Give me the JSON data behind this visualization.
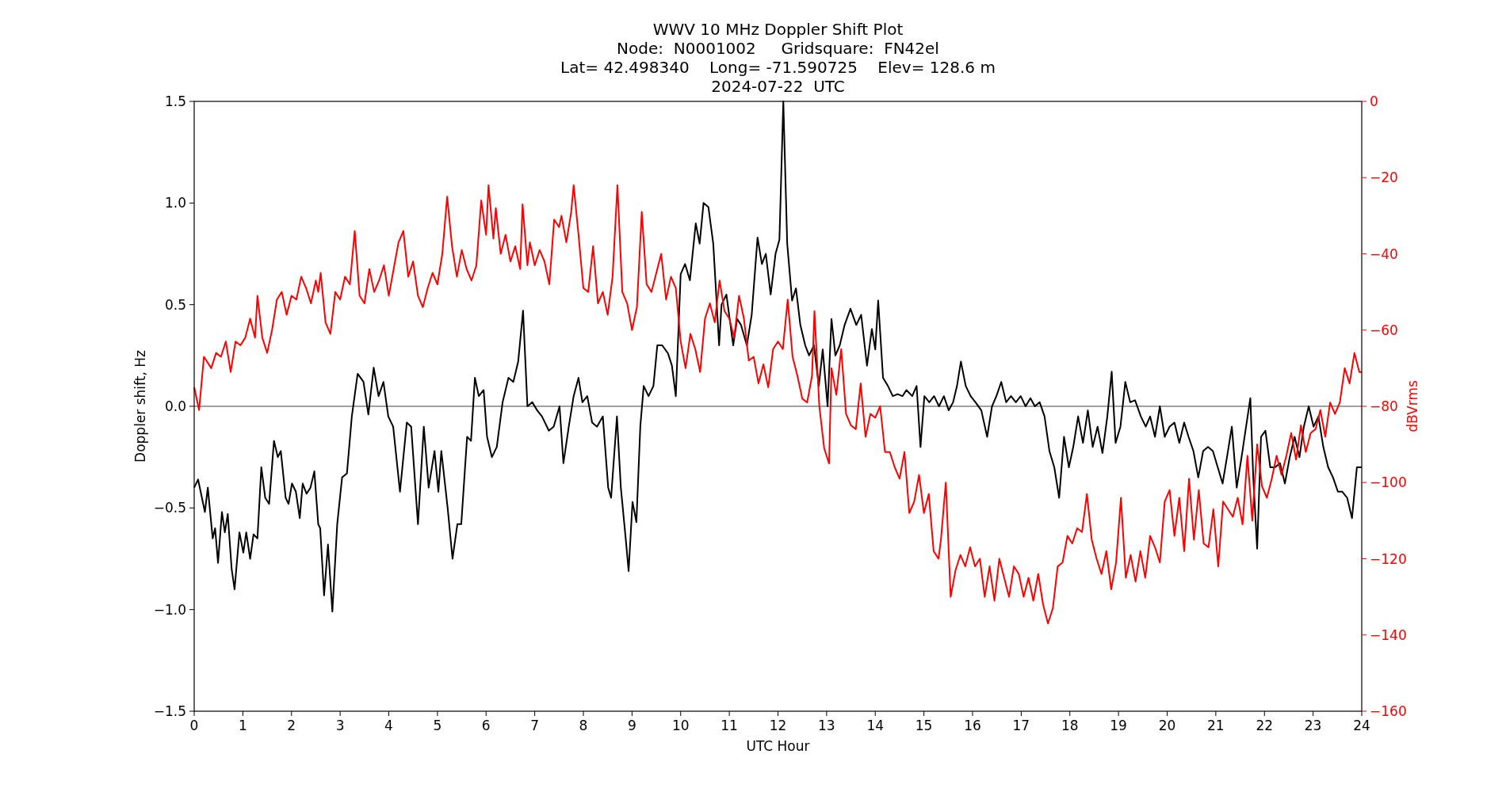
{
  "chart_data": {
    "type": "line",
    "title": "WWV 10 MHz Doppler Shift Plot\nNode:  N0001002     Gridsquare:  FN42el\nLat= 42.498340    Long= -71.590725    Elev= 128.6 m\n2024-07-22  UTC",
    "xlabel": "UTC Hour",
    "ylabel": "Doppler shift, Hz",
    "y2label": "dBVrms",
    "xlim": [
      0,
      24
    ],
    "xticks": [
      0,
      1,
      2,
      3,
      4,
      5,
      6,
      7,
      8,
      9,
      10,
      11,
      12,
      13,
      14,
      15,
      16,
      17,
      18,
      19,
      20,
      21,
      22,
      23,
      24
    ],
    "ylim": [
      -1.5,
      1.5
    ],
    "yticks": [
      {
        "value": -1.5,
        "label": "−1.5"
      },
      {
        "value": -1,
        "label": "−1.0"
      },
      {
        "value": -0.5,
        "label": "−0.5"
      },
      {
        "value": 0,
        "label": "0.0"
      },
      {
        "value": 0.5,
        "label": "0.5"
      },
      {
        "value": 1,
        "label": "1.0"
      },
      {
        "value": 1.5,
        "label": "1.5"
      }
    ],
    "y2lim": [
      -160,
      0
    ],
    "y2ticks": [
      {
        "value": -160,
        "label": "−160"
      },
      {
        "value": -140,
        "label": "−140"
      },
      {
        "value": -120,
        "label": "−120"
      },
      {
        "value": -100,
        "label": "−100"
      },
      {
        "value": -80,
        "label": "−80"
      },
      {
        "value": -60,
        "label": "−60"
      },
      {
        "value": -40,
        "label": "−40"
      },
      {
        "value": -20,
        "label": "−20"
      },
      {
        "value": 0,
        "label": "0"
      }
    ],
    "grid": false,
    "line_style": "solid",
    "marker": "none",
    "ref_lines": [
      {
        "axis": "y",
        "value": 0,
        "label": null,
        "color": "#808080"
      }
    ],
    "series": [
      {
        "color": "#000000",
        "x": [
          0,
          0.08,
          0.22,
          0.28,
          0.38,
          0.43,
          0.49,
          0.57,
          0.63,
          0.69,
          0.77,
          0.83,
          0.93,
          1.01,
          1.07,
          1.15,
          1.22,
          1.3,
          1.38,
          1.46,
          1.54,
          1.64,
          1.72,
          1.78,
          1.88,
          1.94,
          2.01,
          2.09,
          2.17,
          2.23,
          2.31,
          2.39,
          2.47,
          2.55,
          2.59,
          2.67,
          2.75,
          2.84,
          2.94,
          3.04,
          3.14,
          3.24,
          3.36,
          3.48,
          3.58,
          3.69,
          3.79,
          3.89,
          3.99,
          4.09,
          4.23,
          4.37,
          4.46,
          4.6,
          4.72,
          4.82,
          4.94,
          5.02,
          5.08,
          5.21,
          5.31,
          5.41,
          5.49,
          5.61,
          5.69,
          5.77,
          5.85,
          5.95,
          6.02,
          6.12,
          6.22,
          6.34,
          6.46,
          6.56,
          6.66,
          6.76,
          6.85,
          6.95,
          7.05,
          7.15,
          7.29,
          7.39,
          7.51,
          7.59,
          7.7,
          7.8,
          7.9,
          7.98,
          8.08,
          8.18,
          8.28,
          8.4,
          8.51,
          8.57,
          8.69,
          8.77,
          8.87,
          8.93,
          9.01,
          9.09,
          9.17,
          9.24,
          9.34,
          9.44,
          9.52,
          9.62,
          9.74,
          9.82,
          9.9,
          10,
          10.09,
          10.19,
          10.31,
          10.39,
          10.47,
          10.57,
          10.67,
          10.79,
          10.84,
          10.94,
          11.08,
          11.16,
          11.24,
          11.36,
          11.46,
          11.58,
          11.67,
          11.75,
          11.85,
          11.95,
          12.03,
          12.11,
          12.19,
          12.29,
          12.37,
          12.46,
          12.56,
          12.64,
          12.74,
          12.84,
          12.92,
          13.02,
          13.1,
          13.18,
          13.27,
          13.37,
          13.49,
          13.61,
          13.71,
          13.83,
          13.93,
          14,
          14.06,
          14.16,
          14.26,
          14.36,
          14.46,
          14.56,
          14.64,
          14.76,
          14.85,
          14.93,
          15.01,
          15.11,
          15.21,
          15.31,
          15.41,
          15.51,
          15.6,
          15.68,
          15.76,
          15.86,
          15.96,
          16.06,
          16.18,
          16.3,
          16.4,
          16.49,
          16.59,
          16.69,
          16.79,
          16.89,
          16.99,
          17.09,
          17.19,
          17.28,
          17.38,
          17.48,
          17.58,
          17.68,
          17.78,
          17.88,
          17.98,
          18.07,
          18.17,
          18.27,
          18.37,
          18.47,
          18.57,
          18.67,
          18.77,
          18.86,
          18.94,
          19.04,
          19.14,
          19.24,
          19.34,
          19.46,
          19.56,
          19.65,
          19.75,
          19.85,
          19.95,
          20.05,
          20.15,
          20.25,
          20.35,
          20.44,
          20.54,
          20.64,
          20.74,
          20.84,
          20.94,
          21.04,
          21.14,
          21.23,
          21.33,
          21.43,
          21.53,
          21.61,
          21.71,
          21.77,
          21.85,
          21.93,
          22.02,
          22.12,
          22.22,
          22.32,
          22.42,
          22.52,
          22.62,
          22.72,
          22.81,
          22.91,
          23.01,
          23.11,
          23.21,
          23.31,
          23.41,
          23.51,
          23.6,
          23.7,
          23.8,
          23.9,
          24
        ],
        "values": [
          -0.4,
          -0.36,
          -0.52,
          -0.4,
          -0.65,
          -0.6,
          -0.77,
          -0.52,
          -0.62,
          -0.53,
          -0.8,
          -0.9,
          -0.62,
          -0.72,
          -0.62,
          -0.75,
          -0.63,
          -0.65,
          -0.3,
          -0.45,
          -0.48,
          -0.17,
          -0.25,
          -0.22,
          -0.45,
          -0.48,
          -0.38,
          -0.42,
          -0.55,
          -0.38,
          -0.43,
          -0.4,
          -0.32,
          -0.58,
          -0.6,
          -0.93,
          -0.68,
          -1.01,
          -0.58,
          -0.35,
          -0.33,
          -0.05,
          0.16,
          0.12,
          -0.04,
          0.19,
          0.05,
          0.12,
          -0.05,
          -0.1,
          -0.42,
          -0.08,
          -0.1,
          -0.58,
          -0.1,
          -0.4,
          -0.22,
          -0.42,
          -0.22,
          -0.5,
          -0.75,
          -0.58,
          -0.58,
          -0.15,
          -0.17,
          0.14,
          0.05,
          0.08,
          -0.15,
          -0.25,
          -0.2,
          0.02,
          0.14,
          0.12,
          0.22,
          0.47,
          0,
          0.02,
          -0.02,
          -0.05,
          -0.12,
          -0.1,
          0,
          -0.28,
          -0.1,
          0.05,
          0.14,
          0.02,
          0.05,
          -0.08,
          -0.1,
          -0.05,
          -0.4,
          -0.45,
          -0.05,
          -0.4,
          -0.65,
          -0.81,
          -0.47,
          -0.57,
          -0.1,
          0.1,
          0.05,
          0.1,
          0.3,
          0.3,
          0.26,
          0.2,
          0.05,
          0.65,
          0.7,
          0.62,
          0.9,
          0.8,
          1,
          0.98,
          0.8,
          0.3,
          0.5,
          0.55,
          0.3,
          0.43,
          0.4,
          0.3,
          0.45,
          0.83,
          0.7,
          0.75,
          0.55,
          0.75,
          0.82,
          1.5,
          0.8,
          0.52,
          0.58,
          0.4,
          0.3,
          0.25,
          0.3,
          0.1,
          0.28,
          0,
          0.43,
          0.25,
          0.3,
          0.4,
          0.48,
          0.4,
          0.45,
          0.2,
          0.38,
          0.28,
          0.52,
          0.14,
          0.1,
          0.05,
          0.06,
          0.05,
          0.08,
          0.05,
          0.1,
          -0.2,
          0.05,
          0.02,
          0.05,
          0,
          0.05,
          -0.02,
          0.02,
          0.1,
          0.22,
          0.1,
          0.05,
          0.02,
          -0.02,
          -0.15,
          0,
          0.05,
          0.12,
          0.02,
          0.05,
          0.02,
          0.05,
          0,
          0.04,
          0,
          0.02,
          -0.05,
          -0.22,
          -0.3,
          -0.45,
          -0.15,
          -0.3,
          -0.2,
          -0.05,
          -0.18,
          -0.02,
          -0.2,
          -0.1,
          -0.23,
          -0.05,
          0.17,
          -0.18,
          -0.1,
          0.12,
          0.02,
          0.03,
          -0.05,
          -0.1,
          -0.05,
          -0.15,
          0,
          -0.15,
          -0.1,
          -0.08,
          -0.18,
          -0.08,
          -0.15,
          -0.22,
          -0.35,
          -0.22,
          -0.2,
          -0.22,
          -0.3,
          -0.38,
          -0.25,
          -0.1,
          -0.4,
          -0.25,
          -0.12,
          0.04,
          -0.35,
          -0.7,
          -0.15,
          -0.12,
          -0.3,
          -0.3,
          -0.28,
          -0.38,
          -0.25,
          -0.15,
          -0.25,
          -0.1,
          0,
          -0.1,
          -0.05,
          -0.2,
          -0.3,
          -0.35,
          -0.42,
          -0.42,
          -0.45,
          -0.55,
          -0.3,
          -0.3
        ]
      },
      {
        "color": "#ff0000",
        "axis": "y2",
        "x": [
          0,
          0.1,
          0.2,
          0.35,
          0.45,
          0.55,
          0.65,
          0.75,
          0.85,
          0.95,
          1.05,
          1.15,
          1.25,
          1.3,
          1.4,
          1.5,
          1.6,
          1.7,
          1.8,
          1.9,
          2,
          2.1,
          2.2,
          2.3,
          2.4,
          2.5,
          2.55,
          2.6,
          2.7,
          2.8,
          2.9,
          3,
          3.1,
          3.2,
          3.3,
          3.4,
          3.5,
          3.6,
          3.7,
          3.8,
          3.9,
          4,
          4.1,
          4.2,
          4.3,
          4.4,
          4.5,
          4.6,
          4.7,
          4.8,
          4.9,
          5,
          5.1,
          5.2,
          5.3,
          5.4,
          5.5,
          5.6,
          5.7,
          5.8,
          5.9,
          6,
          6.05,
          6.15,
          6.2,
          6.3,
          6.4,
          6.5,
          6.6,
          6.7,
          6.75,
          6.85,
          6.9,
          7,
          7.1,
          7.2,
          7.3,
          7.4,
          7.5,
          7.55,
          7.65,
          7.75,
          7.8,
          7.9,
          8,
          8.1,
          8.2,
          8.3,
          8.4,
          8.5,
          8.6,
          8.7,
          8.8,
          8.9,
          9,
          9.1,
          9.2,
          9.3,
          9.4,
          9.5,
          9.6,
          9.7,
          9.8,
          9.9,
          10,
          10.1,
          10.2,
          10.3,
          10.4,
          10.5,
          10.6,
          10.7,
          10.8,
          10.9,
          11,
          11.1,
          11.2,
          11.3,
          11.4,
          11.5,
          11.6,
          11.7,
          11.8,
          11.9,
          12,
          12.1,
          12.2,
          12.3,
          12.4,
          12.5,
          12.6,
          12.7,
          12.75,
          12.85,
          12.95,
          13.05,
          13.1,
          13.2,
          13.3,
          13.4,
          13.5,
          13.6,
          13.7,
          13.8,
          13.9,
          14,
          14.1,
          14.2,
          14.3,
          14.4,
          14.5,
          14.6,
          14.7,
          14.8,
          14.9,
          15,
          15.1,
          15.2,
          15.3,
          15.35,
          15.45,
          15.55,
          15.65,
          15.75,
          15.85,
          15.95,
          16.05,
          16.15,
          16.25,
          16.35,
          16.45,
          16.55,
          16.65,
          16.75,
          16.85,
          16.95,
          17.05,
          17.15,
          17.25,
          17.35,
          17.45,
          17.55,
          17.65,
          17.75,
          17.85,
          17.95,
          18.05,
          18.15,
          18.25,
          18.35,
          18.45,
          18.55,
          18.65,
          18.75,
          18.85,
          18.95,
          19.05,
          19.15,
          19.25,
          19.35,
          19.45,
          19.55,
          19.65,
          19.75,
          19.85,
          19.95,
          20.05,
          20.15,
          20.25,
          20.35,
          20.45,
          20.55,
          20.65,
          20.75,
          20.85,
          20.95,
          21.05,
          21.15,
          21.25,
          21.35,
          21.45,
          21.55,
          21.65,
          21.75,
          21.85,
          21.95,
          22.05,
          22.15,
          22.25,
          22.35,
          22.45,
          22.55,
          22.65,
          22.75,
          22.85,
          22.95,
          23.05,
          23.15,
          23.25,
          23.35,
          23.45,
          23.55,
          23.65,
          23.75,
          23.85,
          23.95,
          24
        ],
        "values": [
          -75,
          -81,
          -67,
          -70,
          -66,
          -67,
          -63,
          -71,
          -63,
          -64,
          -62,
          -57,
          -62,
          -51,
          -62,
          -66,
          -60,
          -52,
          -50,
          -56,
          -51,
          -52,
          -46,
          -49,
          -53,
          -47,
          -50,
          -45,
          -58,
          -61,
          -50,
          -52,
          -46,
          -48,
          -34,
          -51,
          -53,
          -44,
          -50,
          -47,
          -43,
          -51,
          -44,
          -37,
          -34,
          -46,
          -42,
          -51,
          -54,
          -49,
          -45,
          -48,
          -40,
          -25,
          -38,
          -46,
          -39,
          -44,
          -47,
          -43,
          -26,
          -35,
          -22,
          -36,
          -28,
          -40,
          -35,
          -42,
          -38,
          -44,
          -27,
          -43,
          -37,
          -43,
          -39,
          -42,
          -48,
          -31,
          -33,
          -30,
          -37,
          -29,
          -22,
          -35,
          -49,
          -50,
          -38,
          -53,
          -50,
          -56,
          -46,
          -22,
          -50,
          -53,
          -60,
          -54,
          -29,
          -48,
          -50,
          -45,
          -40,
          -52,
          -46,
          -49,
          -63,
          -70,
          -61,
          -65,
          -71,
          -57,
          -53,
          -58,
          -47,
          -55,
          -57,
          -62,
          -51,
          -57,
          -68,
          -67,
          -74,
          -69,
          -75,
          -65,
          -63,
          -65,
          -52,
          -67,
          -72,
          -78,
          -79,
          -72,
          -55,
          -80,
          -91,
          -95,
          -70,
          -77,
          -65,
          -82,
          -85,
          -86,
          -74,
          -88,
          -82,
          -83,
          -80,
          -92,
          -92,
          -96,
          -99,
          -92,
          -108,
          -105,
          -98,
          -108,
          -103,
          -118,
          -120,
          -115,
          -100,
          -130,
          -123,
          -119,
          -122,
          -117,
          -122,
          -120,
          -130,
          -122,
          -131,
          -120,
          -125,
          -130,
          -122,
          -124,
          -130,
          -125,
          -131,
          -124,
          -132,
          -137,
          -133,
          -122,
          -121,
          -114,
          -116,
          -112,
          -113,
          -103,
          -115,
          -120,
          -124,
          -118,
          -128,
          -121,
          -104,
          -125,
          -119,
          -126,
          -118,
          -125,
          -114,
          -117,
          -121,
          -105,
          -102,
          -114,
          -104,
          -118,
          -99,
          -115,
          -102,
          -116,
          -117,
          -107,
          -122,
          -105,
          -107,
          -109,
          -104,
          -111,
          -93,
          -110,
          -90,
          -101,
          -104,
          -99,
          -93,
          -98,
          -93,
          -87,
          -94,
          -85,
          -92,
          -87,
          -86,
          -81,
          -88,
          -79,
          -82,
          -79,
          -70,
          -74,
          -66,
          -71,
          -71
        ]
      }
    ]
  }
}
